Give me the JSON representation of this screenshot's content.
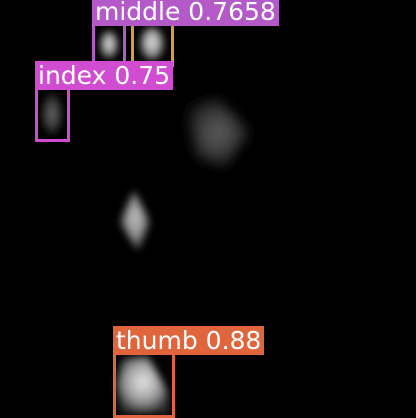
{
  "image": {
    "background": "#000000",
    "description_free": true
  },
  "detections": [
    {
      "class": "middle",
      "confidence": "0.7658",
      "color": "#B45AC8"
    },
    {
      "class": "middle",
      "confidence": "",
      "color": "#E09A3A"
    },
    {
      "class": "index",
      "confidence": "0.75",
      "color": "#D04DD2"
    },
    {
      "class": "thumb",
      "confidence": "0.88",
      "color": "#E0643C"
    }
  ],
  "labels": {
    "middle": "middle 0.7658",
    "index": "index 0.75",
    "thumb": "thumb 0.88"
  }
}
